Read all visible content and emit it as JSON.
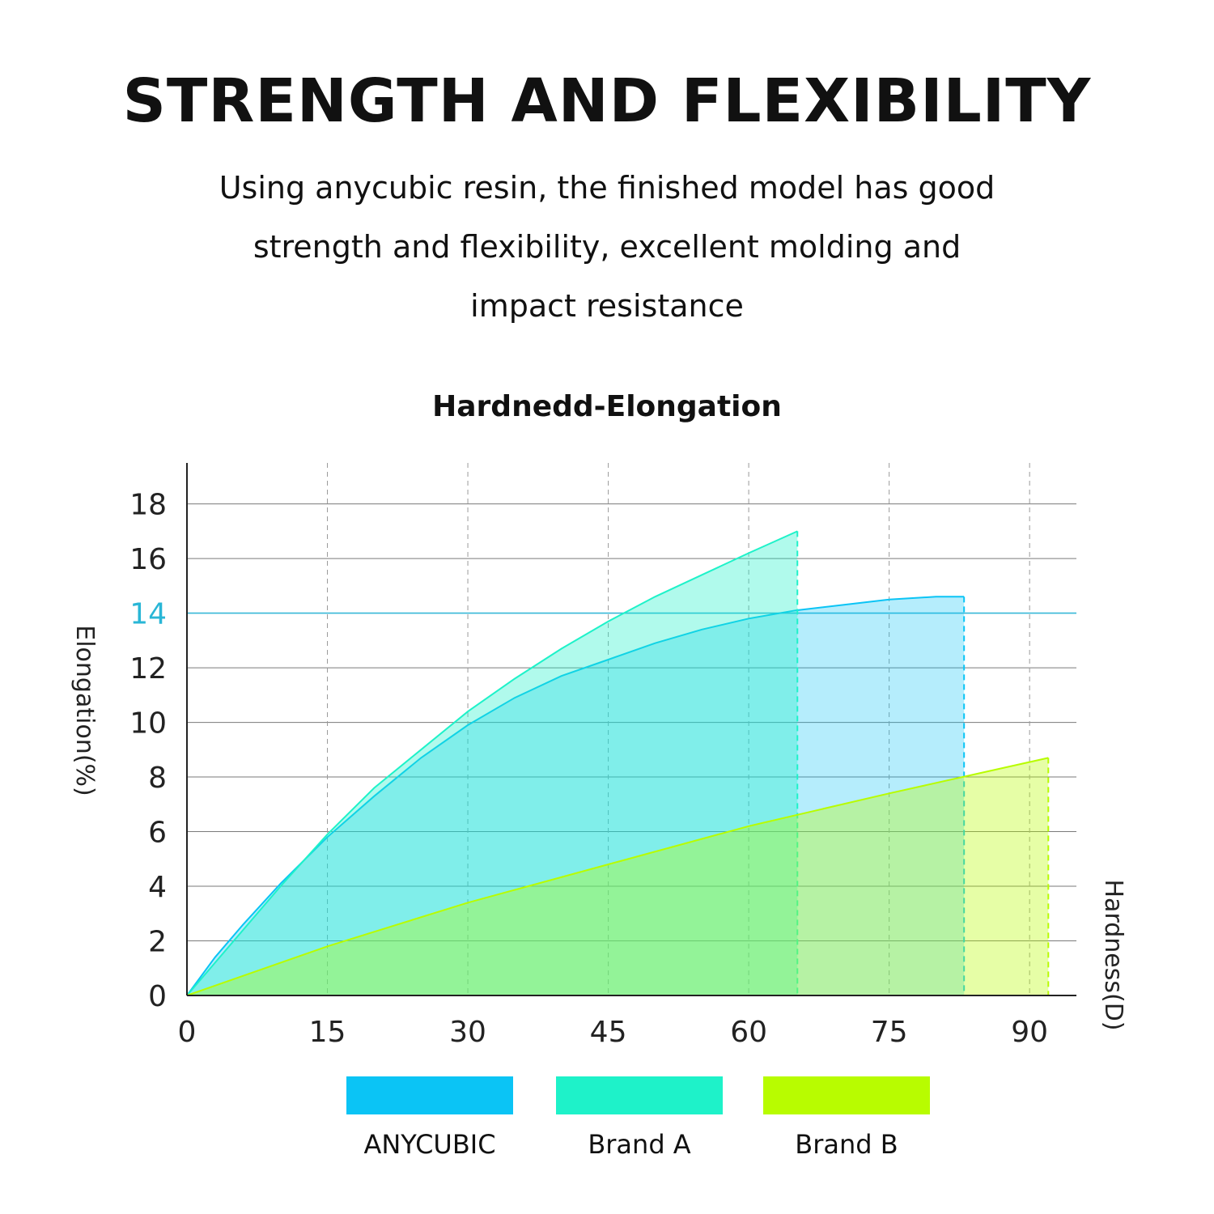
{
  "header": {
    "title": "STRENGTH AND FLEXIBILITY",
    "subtitle_lines": [
      "Using anycubic resin, the finished model has good",
      "strength and flexibility, excellent molding and",
      "impact resistance"
    ]
  },
  "chart_data": {
    "type": "area",
    "title": "Hardnedd-Elongation",
    "xlabel": "Hardness(D)",
    "ylabel": "Elongation(%)",
    "xlim": [
      0,
      95
    ],
    "ylim": [
      0,
      19.5
    ],
    "x_ticks": [
      0,
      15,
      30,
      45,
      60,
      75,
      90
    ],
    "y_ticks": [
      0,
      2,
      4,
      6,
      8,
      10,
      12,
      14,
      16,
      18
    ],
    "highlight_y": 14,
    "grid": true,
    "legend_position": "bottom",
    "series": [
      {
        "name": "ANYCUBIC",
        "color": "#0BC4F5",
        "x": [
          0,
          3,
          6,
          10,
          15,
          20,
          25,
          30,
          35,
          40,
          45,
          50,
          55,
          60,
          65,
          70,
          75,
          80,
          83
        ],
        "y": [
          0,
          1.4,
          2.6,
          4.1,
          5.8,
          7.3,
          8.7,
          9.9,
          10.9,
          11.7,
          12.3,
          12.9,
          13.4,
          13.8,
          14.1,
          14.3,
          14.5,
          14.6,
          14.6
        ]
      },
      {
        "name": "Brand A",
        "color": "#1EF2C9",
        "x": [
          0,
          3,
          6,
          10,
          15,
          20,
          25,
          30,
          35,
          40,
          45,
          50,
          55,
          60,
          65.2
        ],
        "y": [
          0,
          1.2,
          2.4,
          4.0,
          5.9,
          7.6,
          9.0,
          10.4,
          11.6,
          12.7,
          13.7,
          14.6,
          15.4,
          16.2,
          17.0
        ]
      },
      {
        "name": "Brand B",
        "color": "#B8FC00",
        "x": [
          0,
          15,
          30,
          45,
          60,
          75,
          92
        ],
        "y": [
          0,
          1.8,
          3.4,
          4.8,
          6.2,
          7.4,
          8.7
        ]
      }
    ]
  }
}
